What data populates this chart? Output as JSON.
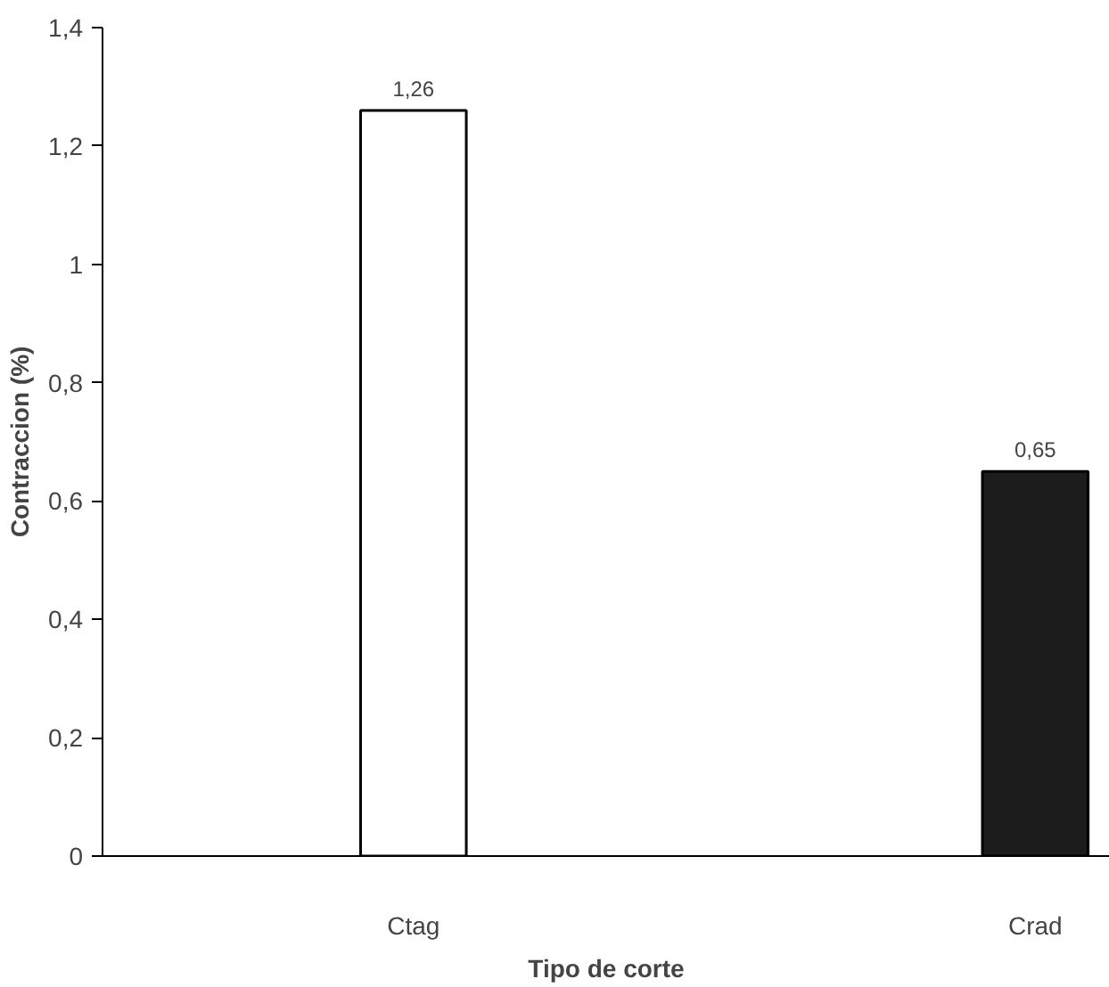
{
  "chart_data": {
    "type": "bar",
    "xlabel": "Tipo de corte",
    "ylabel": "Contraccion (%)",
    "categories": [
      "Ctag",
      "Crad"
    ],
    "values": [
      1.26,
      0.65
    ],
    "colors": [
      "#ffffff",
      "#1c1c1c"
    ],
    "value_labels": [
      "1,26",
      "0,65"
    ],
    "ylim": [
      0,
      1.4
    ],
    "yticks": [
      {
        "value": 0,
        "label": "0"
      },
      {
        "value": 0.2,
        "label": "0,2"
      },
      {
        "value": 0.4,
        "label": "0,4"
      },
      {
        "value": 0.6,
        "label": "0,6"
      },
      {
        "value": 0.8,
        "label": "0,8"
      },
      {
        "value": 1,
        "label": "1"
      },
      {
        "value": 1.2,
        "label": "1,2"
      },
      {
        "value": 1.4,
        "label": "1,4"
      }
    ],
    "grid": false
  }
}
